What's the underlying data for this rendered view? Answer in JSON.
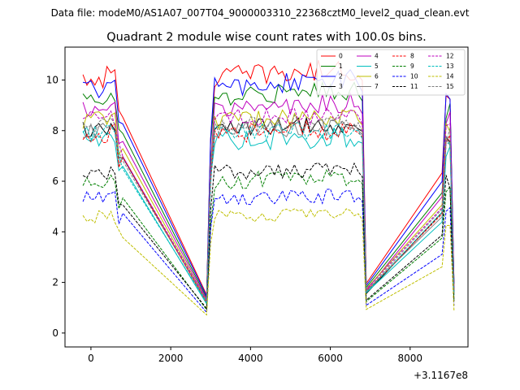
{
  "page": {
    "suptitle": "Data file: modeM0/AS1A07_007T04_9000003310_22368cztM0_level2_quad_clean.evt"
  },
  "chart_data": {
    "type": "line",
    "title": "Quadrant 2 module wise count rates with 100.0s bins.",
    "xlabel": "",
    "ylabel": "",
    "x_offset_label": "+3.1167e8",
    "xlim": [
      -650,
      9450
    ],
    "ylim": [
      -0.55,
      11.3
    ],
    "xticks": [
      0,
      2000,
      4000,
      6000,
      8000
    ],
    "xtick_labels": [
      "0",
      "2000",
      "4000",
      "6000",
      "8000"
    ],
    "yticks": [
      0,
      2,
      4,
      6,
      8,
      10
    ],
    "ytick_labels": [
      "0",
      "2",
      "4",
      "6",
      "8",
      "10"
    ],
    "legend_position": "top-right",
    "segments": [
      {
        "start": -200,
        "step": 100,
        "count": 11
      },
      {
        "start": 2900,
        "step": 100,
        "count": 41
      },
      {
        "start": 8800,
        "step": 100,
        "count": 4
      }
    ],
    "series": [
      {
        "name": "0",
        "color": "#ff0000",
        "dash": "solid",
        "base": 10.1,
        "amp": 0.45
      },
      {
        "name": "1",
        "color": "#008000",
        "dash": "solid",
        "base": 9.3,
        "amp": 0.4
      },
      {
        "name": "2",
        "color": "#0000ff",
        "dash": "solid",
        "base": 9.7,
        "amp": 0.4
      },
      {
        "name": "3",
        "color": "#000000",
        "dash": "solid",
        "base": 8.1,
        "amp": 0.35
      },
      {
        "name": "4",
        "color": "#bf00bf",
        "dash": "solid",
        "base": 8.8,
        "amp": 0.4
      },
      {
        "name": "5",
        "color": "#00bfbf",
        "dash": "solid",
        "base": 7.6,
        "amp": 0.4
      },
      {
        "name": "6",
        "color": "#bfbf00",
        "dash": "solid",
        "base": 8.4,
        "amp": 0.35
      },
      {
        "name": "7",
        "color": "#808080",
        "dash": "solid",
        "base": 8.0,
        "amp": 0.35
      },
      {
        "name": "8",
        "color": "#ff0000",
        "dash": "dashed",
        "base": 7.9,
        "amp": 0.4
      },
      {
        "name": "9",
        "color": "#008000",
        "dash": "dashed",
        "base": 6.0,
        "amp": 0.35
      },
      {
        "name": "10",
        "color": "#0000ff",
        "dash": "dashed",
        "base": 5.3,
        "amp": 0.3
      },
      {
        "name": "11",
        "color": "#000000",
        "dash": "dashed",
        "base": 6.3,
        "amp": 0.35
      },
      {
        "name": "12",
        "color": "#bf00bf",
        "dash": "dashed",
        "base": 8.5,
        "amp": 0.35
      },
      {
        "name": "13",
        "color": "#00bfbf",
        "dash": "dashed",
        "base": 7.9,
        "amp": 0.35
      },
      {
        "name": "14",
        "color": "#bfbf00",
        "dash": "dashed",
        "base": 4.6,
        "amp": 0.25
      },
      {
        "name": "15",
        "color": "#808080",
        "dash": "dashed",
        "base": 8.2,
        "amp": 0.35
      }
    ]
  }
}
